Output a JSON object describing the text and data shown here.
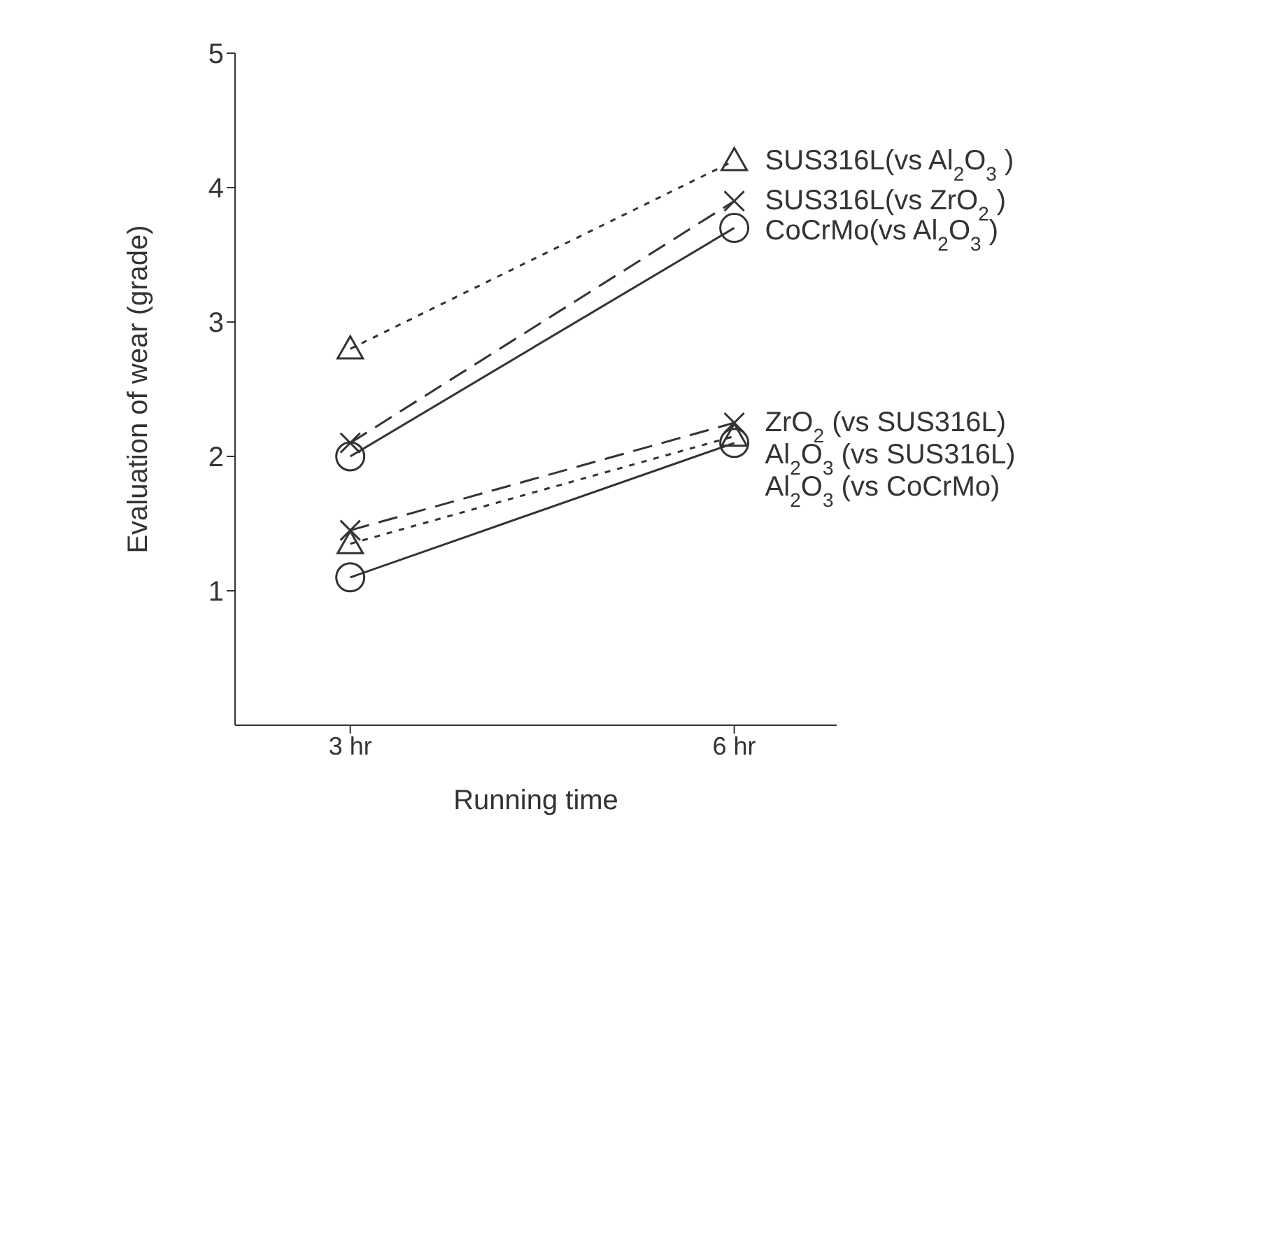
{
  "chart_data": {
    "type": "line",
    "xlabel": "Running time",
    "ylabel": "Evaluation of wear (grade)",
    "x": [
      3,
      6
    ],
    "xlim": [
      2.1,
      6.8
    ],
    "xticks": [
      {
        "value": 3,
        "label": "3 hr"
      },
      {
        "value": 6,
        "label": "6 hr"
      }
    ],
    "ylim": [
      0,
      5
    ],
    "yticks": [
      1,
      2,
      3,
      4,
      5
    ],
    "series": [
      {
        "name": "SUS316L(vs Al$_{2}$O$_{3}$ )",
        "color": "#333333",
        "values": [
          2.8,
          4.2
        ],
        "marker": "triangle",
        "line_style": "dotted"
      },
      {
        "name": "SUS316L(vs ZrO$_{2}$ )",
        "color": "#333333",
        "values": [
          2.1,
          3.9
        ],
        "marker": "cross",
        "line_style": "dashed"
      },
      {
        "name": "CoCrMo(vs Al$_{2}$O$_{3}$ )",
        "color": "#333333",
        "values": [
          2.0,
          3.7
        ],
        "marker": "circle",
        "line_style": "solid"
      },
      {
        "name": "Al$_{2}$O$_{3}$ (vs SUS316L)",
        "color": "#333333",
        "values": [
          1.35,
          2.15
        ],
        "marker": "triangle",
        "line_style": "dotted"
      },
      {
        "name": "ZrO$_{2}$ (vs SUS316L)",
        "color": "#333333",
        "values": [
          1.45,
          2.25
        ],
        "marker": "cross",
        "line_style": "dashed"
      },
      {
        "name": "Al$_{2}$O$_{3}$ (vs CoCrMo)",
        "color": "#333333",
        "values": [
          1.1,
          2.1
        ],
        "marker": "circle",
        "line_style": "solid"
      }
    ]
  }
}
